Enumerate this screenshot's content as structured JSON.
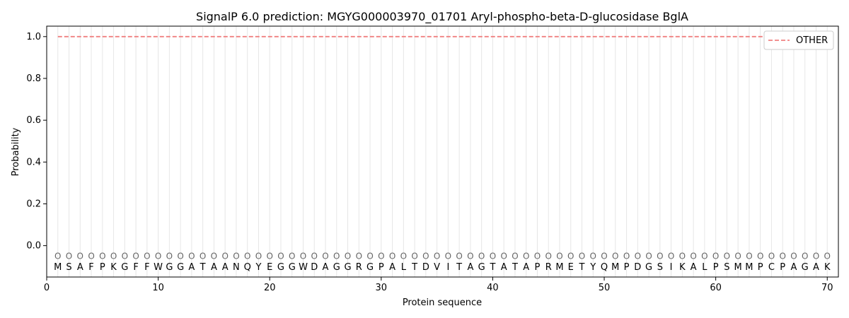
{
  "chart_data": {
    "type": "line",
    "title": "SignalP 6.0 prediction: MGYG000003970_01701 Aryl-phospho-beta-D-glucosidase BglA",
    "xlabel": "Protein sequence",
    "ylabel": "Probability",
    "xlim": [
      0,
      71
    ],
    "ylim": [
      -0.15,
      1.05
    ],
    "xticks": [
      0,
      10,
      20,
      30,
      40,
      50,
      60,
      70
    ],
    "yticks": [
      0.0,
      0.2,
      0.4,
      0.6,
      0.8,
      1.0
    ],
    "ytick_labels": [
      "0.0",
      "0.2",
      "0.4",
      "0.6",
      "0.8",
      "1.0"
    ],
    "grid": "vertical per residue",
    "legend_position": "top-right",
    "sequence": "MSAFPKGFFWGGATAANQYEGGWDAGGRGPALTDVITAGTATAPRMETYQMPDGSIKALPSMMPCPAGAK",
    "predicted_state": "O",
    "state_y": -0.05,
    "series": [
      {
        "name": "OTHER",
        "color": "#f08080",
        "style": "dashed",
        "x_start": 1,
        "x_end": 70,
        "value": 1.0
      }
    ]
  }
}
